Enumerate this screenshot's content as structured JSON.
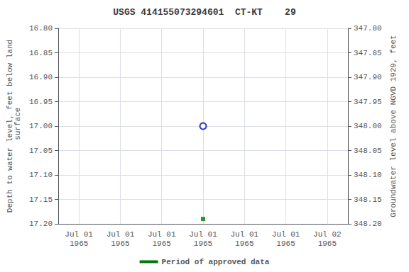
{
  "chart_data": {
    "type": "scatter",
    "title": "USGS 414155073294601  CT-KT    29",
    "categories": [
      "Jul 01\n1965",
      "Jul 01\n1965",
      "Jul 01\n1965",
      "Jul 01\n1965",
      "Jul 01\n1965",
      "Jul 01\n1965",
      "Jul 02\n1965"
    ],
    "ylabel": "Depth to water level, feet below land\n surface",
    "y2label": "Groundwater level above NGVD 1929, feet",
    "ylim": [
      17.2,
      16.8
    ],
    "yticks": [
      {
        "value": 16.8,
        "label": "16.80"
      },
      {
        "value": 16.85,
        "label": "16.85"
      },
      {
        "value": 16.9,
        "label": "16.90"
      },
      {
        "value": 16.95,
        "label": "16.95"
      },
      {
        "value": 17.0,
        "label": "17.00"
      },
      {
        "value": 17.05,
        "label": "17.05"
      },
      {
        "value": 17.1,
        "label": "17.10"
      },
      {
        "value": 17.15,
        "label": "17.15"
      },
      {
        "value": 17.2,
        "label": "17.20"
      }
    ],
    "y2lim": [
      348.2,
      347.8
    ],
    "y2ticks": [
      {
        "value": 347.8,
        "label": "347.80"
      },
      {
        "value": 347.85,
        "label": "347.85"
      },
      {
        "value": 347.9,
        "label": "347.90"
      },
      {
        "value": 347.95,
        "label": "347.95"
      },
      {
        "value": 348.0,
        "label": "348.00"
      },
      {
        "value": 348.05,
        "label": "348.05"
      },
      {
        "value": 348.1,
        "label": "348.10"
      },
      {
        "value": 348.15,
        "label": "348.15"
      },
      {
        "value": 348.2,
        "label": "348.20"
      }
    ],
    "grid": true,
    "legend": "bottom",
    "series": [
      {
        "type": "scatter",
        "marker": "open_circle",
        "color": "#0000bb",
        "values": [
          null,
          null,
          null,
          17.0,
          null,
          null,
          null
        ]
      },
      {
        "type": "scatter",
        "marker": "square",
        "color": "#007700",
        "values": [
          null,
          null,
          null,
          17.19,
          null,
          null,
          null
        ]
      },
      {
        "name": "Period of approved data",
        "type": "line",
        "color": "#007700",
        "values": [
          null,
          null,
          null,
          null,
          null,
          null,
          null
        ]
      }
    ]
  }
}
